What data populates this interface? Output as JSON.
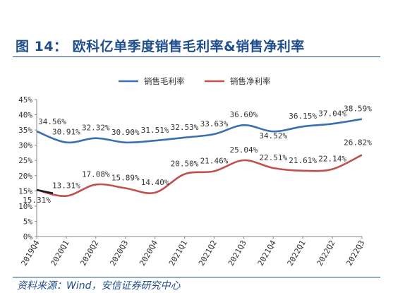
{
  "title": "图 14：  欧科亿单季度销售毛利率&销售净利率",
  "source": "资料来源：Wind，安信证券研究中心",
  "colors": {
    "accent": "#1f4d8c",
    "gross": "#3a6fb0",
    "net": "#c0504d",
    "start_segment": "#1a1a1a"
  },
  "chart_data": {
    "type": "line",
    "categories": [
      "2019Q4",
      "2020Q1",
      "2020Q2",
      "2020Q3",
      "2020Q4",
      "2021Q1",
      "2021Q2",
      "2021Q3",
      "2021Q4",
      "2022Q1",
      "2022Q2",
      "2022Q3"
    ],
    "series": [
      {
        "name": "销售毛利率",
        "values": [
          34.56,
          30.91,
          32.32,
          30.9,
          31.51,
          32.53,
          33.63,
          36.6,
          34.52,
          36.15,
          37.04,
          38.59
        ],
        "labels": [
          "34.56%",
          "30.91%",
          "32.32%",
          "30.90%",
          "31.51%",
          "32.53%",
          "33.63%",
          "36.60%",
          "34.52%",
          "36.15%",
          "37.04%",
          "38.59%"
        ]
      },
      {
        "name": "销售净利率",
        "values": [
          15.31,
          13.31,
          17.08,
          15.89,
          14.4,
          20.5,
          21.46,
          25.04,
          22.51,
          21.61,
          22.14,
          26.82
        ],
        "labels": [
          "15.31%",
          "13.31%",
          "17.08%",
          "15.89%",
          "14.40%",
          "20.50%",
          "21.46%",
          "25.04%",
          "22.51%",
          "21.61%",
          "22.14%",
          "26.82%"
        ]
      }
    ],
    "y_ticks": [
      "0%",
      "5%",
      "10%",
      "15%",
      "20%",
      "25%",
      "30%",
      "35%",
      "40%",
      "45%"
    ],
    "ylim": [
      0,
      45
    ],
    "grid": false,
    "legend": "top-center"
  }
}
